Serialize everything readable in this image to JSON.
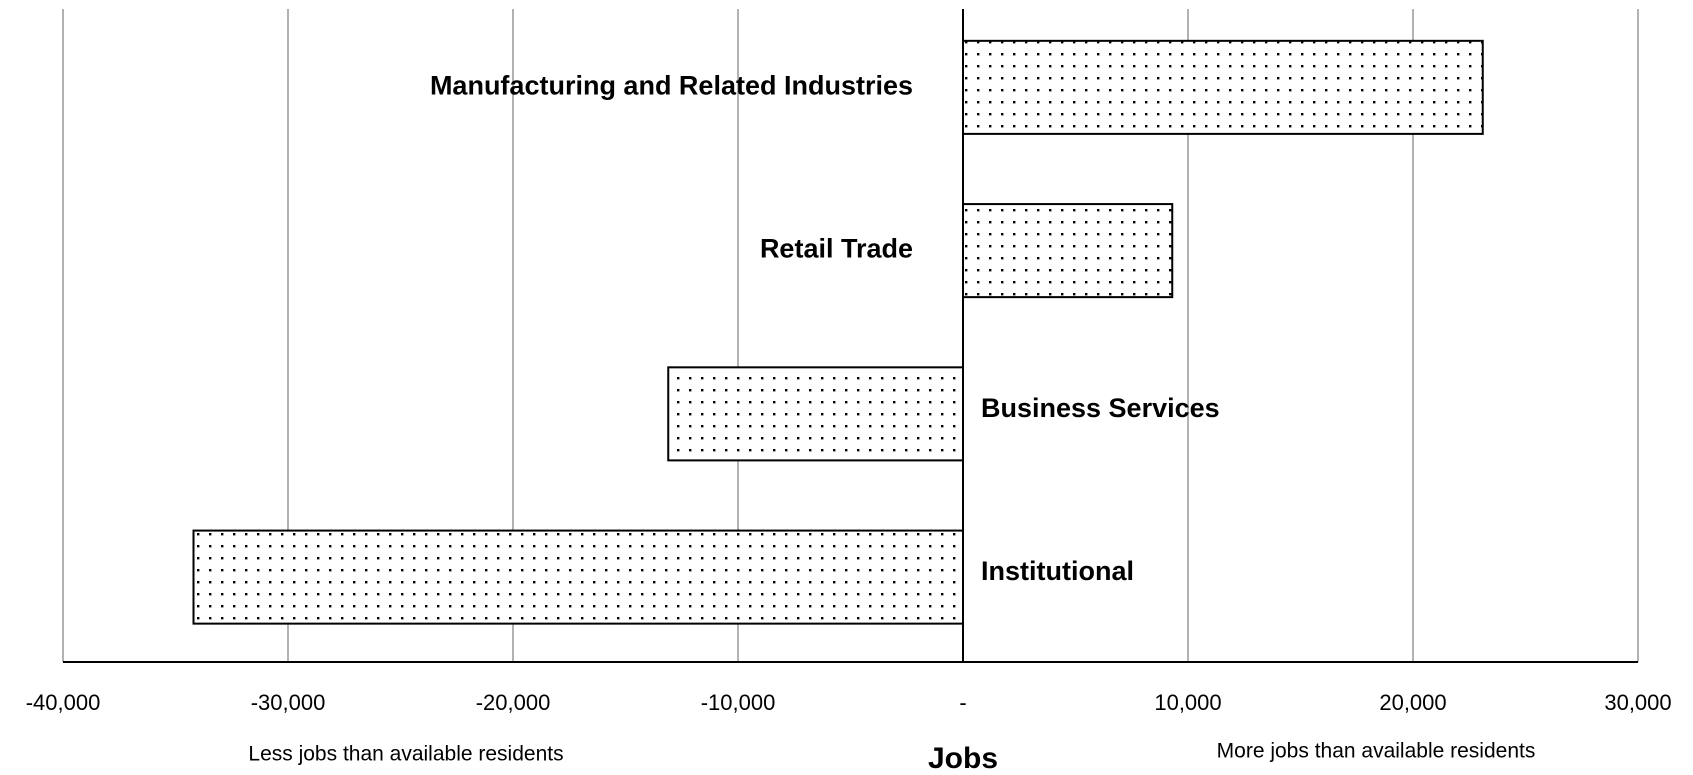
{
  "chart_data": {
    "type": "bar",
    "orientation": "horizontal",
    "categories": [
      "Manufacturing and Related Industries",
      "Retail Trade",
      "Business Services",
      "Institutional"
    ],
    "values": [
      23100,
      9300,
      -13100,
      -34200
    ],
    "xlim": [
      -40000,
      30000
    ],
    "xticks": [
      {
        "value": -40000,
        "label": "-40,000"
      },
      {
        "value": -30000,
        "label": "-30,000"
      },
      {
        "value": -20000,
        "label": "-20,000"
      },
      {
        "value": -10000,
        "label": "-10,000"
      },
      {
        "value": 0,
        "label": "-"
      },
      {
        "value": 10000,
        "label": "10,000"
      },
      {
        "value": 20000,
        "label": "20,000"
      },
      {
        "value": 30000,
        "label": "30,000"
      }
    ],
    "xlabel": "Jobs",
    "annotations": [
      "Less jobs than available residents",
      "More jobs than available residents"
    ],
    "grid": true,
    "color": "#000000"
  }
}
